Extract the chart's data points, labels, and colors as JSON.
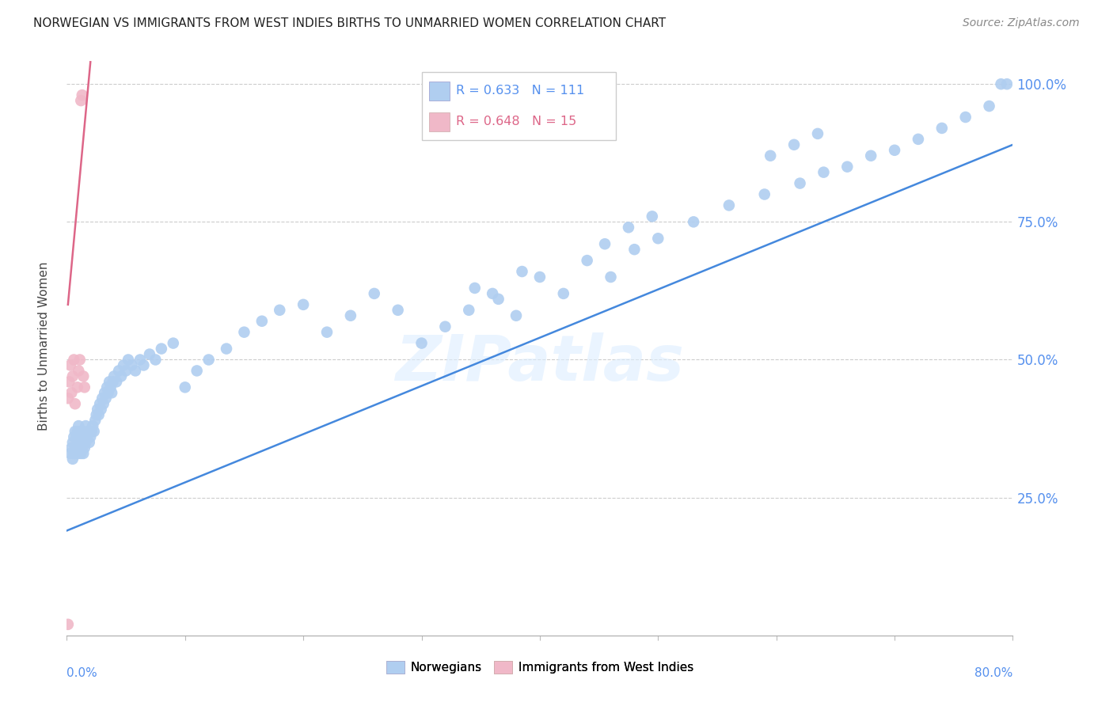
{
  "title": "NORWEGIAN VS IMMIGRANTS FROM WEST INDIES BIRTHS TO UNMARRIED WOMEN CORRELATION CHART",
  "source": "Source: ZipAtlas.com",
  "ylabel": "Births to Unmarried Women",
  "legend_label_blue": "Norwegians",
  "legend_label_pink": "Immigrants from West Indies",
  "blue_color": "#b0cef0",
  "pink_color": "#f0b8c8",
  "blue_line_color": "#4488dd",
  "pink_line_color": "#dd6688",
  "watermark": "ZIPatlas",
  "xlim": [
    0.0,
    0.8
  ],
  "ylim": [
    0.0,
    1.05
  ],
  "blue_line_x": [
    0.0,
    0.8
  ],
  "blue_line_y": [
    0.19,
    0.89
  ],
  "pink_line_x": [
    0.001,
    0.02
  ],
  "pink_line_y": [
    0.6,
    1.04
  ],
  "blue_x": [
    0.003,
    0.004,
    0.005,
    0.005,
    0.006,
    0.006,
    0.007,
    0.007,
    0.008,
    0.008,
    0.009,
    0.009,
    0.01,
    0.01,
    0.01,
    0.011,
    0.011,
    0.012,
    0.012,
    0.013,
    0.013,
    0.014,
    0.014,
    0.015,
    0.015,
    0.016,
    0.016,
    0.017,
    0.018,
    0.019,
    0.02,
    0.021,
    0.022,
    0.023,
    0.024,
    0.025,
    0.026,
    0.027,
    0.028,
    0.029,
    0.03,
    0.031,
    0.032,
    0.033,
    0.034,
    0.035,
    0.036,
    0.037,
    0.038,
    0.039,
    0.04,
    0.042,
    0.044,
    0.046,
    0.048,
    0.05,
    0.052,
    0.055,
    0.058,
    0.062,
    0.065,
    0.07,
    0.075,
    0.08,
    0.09,
    0.1,
    0.11,
    0.12,
    0.135,
    0.15,
    0.165,
    0.18,
    0.2,
    0.22,
    0.24,
    0.26,
    0.28,
    0.3,
    0.32,
    0.34,
    0.36,
    0.38,
    0.4,
    0.42,
    0.44,
    0.46,
    0.48,
    0.5,
    0.53,
    0.56,
    0.59,
    0.62,
    0.64,
    0.66,
    0.68,
    0.7,
    0.72,
    0.74,
    0.76,
    0.78,
    0.79,
    0.795,
    0.595,
    0.615,
    0.635,
    0.455,
    0.475,
    0.495,
    0.345,
    0.365,
    0.385
  ],
  "blue_y": [
    0.33,
    0.34,
    0.32,
    0.35,
    0.33,
    0.36,
    0.34,
    0.37,
    0.33,
    0.36,
    0.34,
    0.37,
    0.33,
    0.35,
    0.38,
    0.34,
    0.36,
    0.33,
    0.37,
    0.34,
    0.36,
    0.33,
    0.37,
    0.34,
    0.36,
    0.35,
    0.38,
    0.36,
    0.37,
    0.35,
    0.36,
    0.37,
    0.38,
    0.37,
    0.39,
    0.4,
    0.41,
    0.4,
    0.42,
    0.41,
    0.43,
    0.42,
    0.44,
    0.43,
    0.45,
    0.44,
    0.46,
    0.45,
    0.44,
    0.46,
    0.47,
    0.46,
    0.48,
    0.47,
    0.49,
    0.48,
    0.5,
    0.49,
    0.48,
    0.5,
    0.49,
    0.51,
    0.5,
    0.52,
    0.53,
    0.45,
    0.48,
    0.5,
    0.52,
    0.55,
    0.57,
    0.59,
    0.6,
    0.55,
    0.58,
    0.62,
    0.59,
    0.53,
    0.56,
    0.59,
    0.62,
    0.58,
    0.65,
    0.62,
    0.68,
    0.65,
    0.7,
    0.72,
    0.75,
    0.78,
    0.8,
    0.82,
    0.84,
    0.85,
    0.87,
    0.88,
    0.9,
    0.92,
    0.94,
    0.96,
    1.0,
    1.0,
    0.87,
    0.89,
    0.91,
    0.71,
    0.74,
    0.76,
    0.63,
    0.61,
    0.66
  ],
  "pink_x": [
    0.001,
    0.002,
    0.003,
    0.004,
    0.005,
    0.006,
    0.007,
    0.009,
    0.01,
    0.011,
    0.012,
    0.013,
    0.014,
    0.015,
    0.001
  ],
  "pink_y": [
    0.43,
    0.46,
    0.49,
    0.44,
    0.47,
    0.5,
    0.42,
    0.45,
    0.48,
    0.5,
    0.97,
    0.98,
    0.47,
    0.45,
    0.02
  ]
}
